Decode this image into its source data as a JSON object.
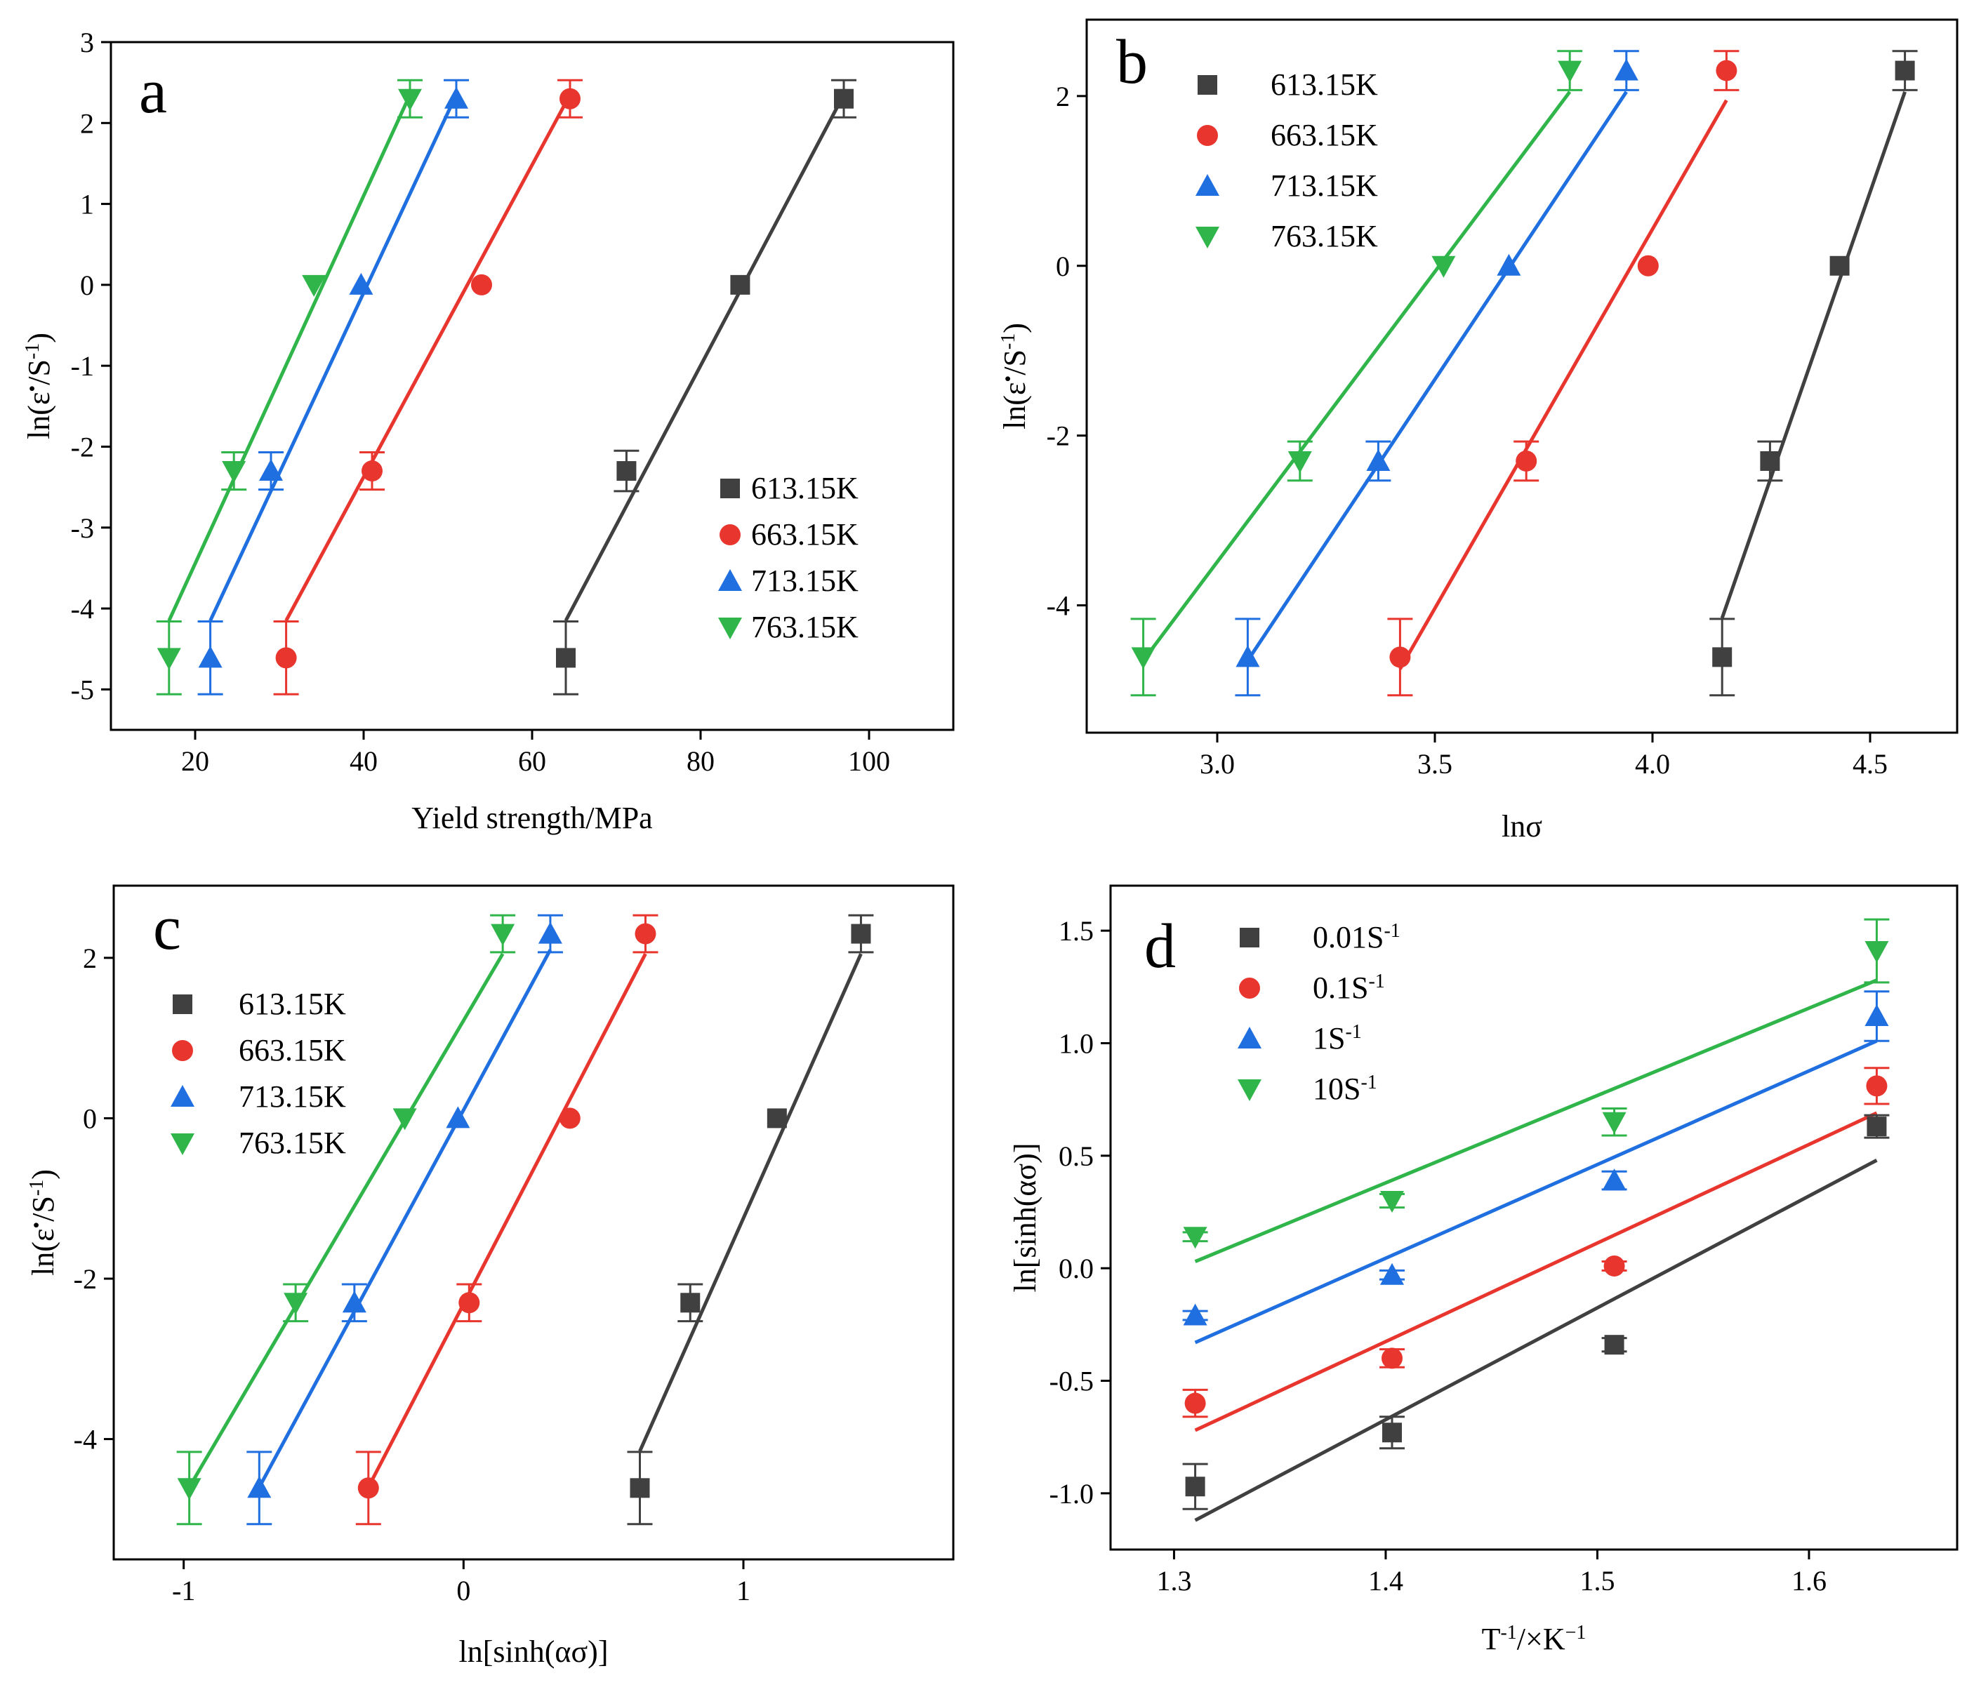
{
  "chart_data": [
    {
      "id": "a",
      "type": "scatter",
      "label": "a",
      "xlabel": "Yield strength/MPa",
      "ylabel": {
        "main": "ln(ε",
        "dot": "•",
        "slash": "/S",
        "sup": "-1",
        "close": ")"
      },
      "xlim": [
        10,
        110
      ],
      "ylim": [
        -5.5,
        3
      ],
      "xticks": [
        "20",
        "40",
        "60",
        "80",
        "100"
      ],
      "xtick_values": [
        20,
        40,
        60,
        80,
        100
      ],
      "yticks": [
        "-5",
        "-4",
        "-3",
        "-2",
        "-1",
        "0",
        "1",
        "2",
        "3"
      ],
      "ytick_values": [
        -5,
        -4,
        -3,
        -2,
        -1,
        0,
        1,
        2,
        3
      ],
      "legend_position": "lower-right",
      "series": [
        {
          "name": "613.15K",
          "color": "#404040",
          "marker": "square",
          "x": [
            64.0,
            71.2,
            84.7,
            97.0
          ],
          "y": [
            -4.61,
            -2.3,
            0.0,
            2.3
          ],
          "err": [
            0.45,
            0.25,
            0,
            0.23
          ],
          "fit": [
            [
              64.0,
              -4.15
            ],
            [
              97.0,
              2.35
            ]
          ]
        },
        {
          "name": "663.15K",
          "color": "#e8352e",
          "marker": "circle",
          "x": [
            30.8,
            41.0,
            54.0,
            64.5
          ],
          "y": [
            -4.61,
            -2.3,
            0.0,
            2.3
          ],
          "err": [
            0.45,
            0.23,
            0,
            0.23
          ],
          "fit": [
            [
              30.8,
              -4.15
            ],
            [
              64.5,
              2.35
            ]
          ]
        },
        {
          "name": "713.15K",
          "color": "#1f6fe0",
          "marker": "triangle-up",
          "x": [
            21.8,
            29.0,
            39.7,
            51.0
          ],
          "y": [
            -4.61,
            -2.3,
            0.0,
            2.3
          ],
          "err": [
            0.45,
            0.23,
            0,
            0.23
          ],
          "fit": [
            [
              21.8,
              -4.15
            ],
            [
              51.0,
              2.35
            ]
          ]
        },
        {
          "name": "763.15K",
          "color": "#2fb54a",
          "marker": "triangle-down",
          "x": [
            16.9,
            24.6,
            34.1,
            45.5
          ],
          "y": [
            -4.61,
            -2.3,
            0.0,
            2.3
          ],
          "err": [
            0.45,
            0.23,
            0,
            0.23
          ],
          "fit": [
            [
              16.9,
              -4.15
            ],
            [
              45.5,
              2.35
            ]
          ]
        }
      ]
    },
    {
      "id": "b",
      "type": "scatter",
      "label": "b",
      "xlabel": "lnσ",
      "ylabel": {
        "main": "ln(ε",
        "dot": "•",
        "slash": "/S",
        "sup": "-1",
        "close": ")"
      },
      "xlim": [
        2.7,
        4.7
      ],
      "ylim": [
        -5.5,
        2.9
      ],
      "xticks": [
        "3.0",
        "3.5",
        "4.0",
        "4.5"
      ],
      "xtick_values": [
        3.0,
        3.5,
        4.0,
        4.5
      ],
      "yticks": [
        "-4",
        "-2",
        "0",
        "2"
      ],
      "ytick_values": [
        -4,
        -2,
        0,
        2
      ],
      "legend_position": "top-left",
      "series": [
        {
          "name": "613.15K",
          "color": "#404040",
          "marker": "square",
          "x": [
            4.16,
            4.27,
            4.43,
            4.58
          ],
          "y": [
            -4.61,
            -2.3,
            0.0,
            2.3
          ],
          "err": [
            0.45,
            0.23,
            0,
            0.23
          ],
          "fit": [
            [
              4.16,
              -4.15
            ],
            [
              4.58,
              2.05
            ]
          ]
        },
        {
          "name": "663.15K",
          "color": "#e8352e",
          "marker": "circle",
          "x": [
            3.42,
            3.71,
            3.99,
            4.17
          ],
          "y": [
            -4.61,
            -2.3,
            0.0,
            2.3
          ],
          "err": [
            0.45,
            0.23,
            0,
            0.23
          ],
          "fit": [
            [
              3.42,
              -4.75
            ],
            [
              4.17,
              1.95
            ]
          ]
        },
        {
          "name": "713.15K",
          "color": "#1f6fe0",
          "marker": "triangle-up",
          "x": [
            3.07,
            3.37,
            3.67,
            3.94
          ],
          "y": [
            -4.61,
            -2.3,
            0.0,
            2.3
          ],
          "err": [
            0.45,
            0.23,
            0,
            0.23
          ],
          "fit": [
            [
              3.07,
              -4.65
            ],
            [
              3.94,
              2.05
            ]
          ]
        },
        {
          "name": "763.15K",
          "color": "#2fb54a",
          "marker": "triangle-down",
          "x": [
            2.83,
            3.19,
            3.52,
            3.81
          ],
          "y": [
            -4.61,
            -2.3,
            0.0,
            2.3
          ],
          "err": [
            0.45,
            0.23,
            0,
            0.23
          ],
          "fit": [
            [
              2.83,
              -4.65
            ],
            [
              3.81,
              2.05
            ]
          ]
        }
      ]
    },
    {
      "id": "c",
      "type": "scatter",
      "label": "c",
      "xlabel": "ln[sinh(ασ)]",
      "ylabel": {
        "main": "ln(ε",
        "dot": "•",
        "slash": "/S",
        "sup": "-1",
        "close": ")"
      },
      "xlim": [
        -1.25,
        1.75
      ],
      "ylim": [
        -5.5,
        2.9
      ],
      "xticks": [
        "-1",
        "0",
        "1"
      ],
      "xtick_values": [
        -1,
        0,
        1
      ],
      "yticks": [
        "-4",
        "-2",
        "0",
        "2"
      ],
      "ytick_values": [
        -4,
        -2,
        0,
        2
      ],
      "legend_position": "top-left",
      "series": [
        {
          "name": "613.15K",
          "color": "#404040",
          "marker": "square",
          "x": [
            0.63,
            0.81,
            1.12,
            1.42
          ],
          "y": [
            -4.61,
            -2.3,
            0.0,
            2.3
          ],
          "err": [
            0.45,
            0.23,
            0,
            0.23
          ],
          "fit": [
            [
              0.63,
              -4.15
            ],
            [
              1.42,
              2.05
            ]
          ]
        },
        {
          "name": "663.15K",
          "color": "#e8352e",
          "marker": "circle",
          "x": [
            -0.34,
            0.02,
            0.38,
            0.65
          ],
          "y": [
            -4.61,
            -2.3,
            0.0,
            2.3
          ],
          "err": [
            0.45,
            0.23,
            0,
            0.23
          ],
          "fit": [
            [
              -0.34,
              -4.6
            ],
            [
              0.65,
              2.05
            ]
          ]
        },
        {
          "name": "713.15K",
          "color": "#1f6fe0",
          "marker": "triangle-up",
          "x": [
            -0.73,
            -0.39,
            -0.02,
            0.31
          ],
          "y": [
            -4.61,
            -2.3,
            0.0,
            2.3
          ],
          "err": [
            0.45,
            0.23,
            0,
            0.23
          ],
          "fit": [
            [
              -0.73,
              -4.6
            ],
            [
              0.31,
              2.1
            ]
          ]
        },
        {
          "name": "763.15K",
          "color": "#2fb54a",
          "marker": "triangle-down",
          "x": [
            -0.98,
            -0.6,
            -0.21,
            0.14
          ],
          "y": [
            -4.61,
            -2.3,
            0.0,
            2.3
          ],
          "err": [
            0.45,
            0.23,
            0,
            0.23
          ],
          "fit": [
            [
              -0.98,
              -4.6
            ],
            [
              0.14,
              2.05
            ]
          ]
        }
      ]
    },
    {
      "id": "d",
      "type": "scatter",
      "label": "d",
      "xlabel": {
        "main": "T",
        "sup1": "-1",
        "mid": "/×K",
        "sup2": "−1"
      },
      "ylabel_text": "ln[sinh(ασ)]",
      "xlim": [
        1.27,
        1.67
      ],
      "ylim": [
        -1.25,
        1.7
      ],
      "xticks": [
        "1.3",
        "1.4",
        "1.5",
        "1.6"
      ],
      "xtick_values": [
        1.3,
        1.4,
        1.5,
        1.6
      ],
      "yticks": [
        "-1.0",
        "-0.5",
        "0.0",
        "0.5",
        "1.0",
        "1.5"
      ],
      "ytick_values": [
        -1.0,
        -0.5,
        0.0,
        0.5,
        1.0,
        1.5
      ],
      "legend_position": "top-left",
      "legend_labels": [
        {
          "main": "0.01S",
          "sup": "-1"
        },
        {
          "main": "0.1S",
          "sup": "-1"
        },
        {
          "main": "1S",
          "sup": "-1"
        },
        {
          "main": "10S",
          "sup": "-1"
        }
      ],
      "series": [
        {
          "name": "0.01S-1",
          "color": "#404040",
          "marker": "square",
          "x": [
            1.31,
            1.403,
            1.508,
            1.632
          ],
          "y": [
            -0.97,
            -0.73,
            -0.34,
            0.63
          ],
          "err": [
            0.1,
            0.07,
            0.03,
            0.05
          ],
          "fit": [
            [
              1.31,
              -1.12
            ],
            [
              1.632,
              0.48
            ]
          ]
        },
        {
          "name": "0.1S-1",
          "color": "#e8352e",
          "marker": "circle",
          "x": [
            1.31,
            1.403,
            1.508,
            1.632
          ],
          "y": [
            -0.6,
            -0.4,
            0.01,
            0.81
          ],
          "err": [
            0.06,
            0.04,
            0.02,
            0.08
          ],
          "fit": [
            [
              1.31,
              -0.72
            ],
            [
              1.632,
              0.69
            ]
          ]
        },
        {
          "name": "1S-1",
          "color": "#1f6fe0",
          "marker": "triangle-up",
          "x": [
            1.31,
            1.403,
            1.508,
            1.632
          ],
          "y": [
            -0.21,
            -0.03,
            0.39,
            1.12
          ],
          "err": [
            0.02,
            0.02,
            0.04,
            0.11
          ],
          "fit": [
            [
              1.31,
              -0.33
            ],
            [
              1.632,
              1.01
            ]
          ]
        },
        {
          "name": "10S-1",
          "color": "#2fb54a",
          "marker": "triangle-down",
          "x": [
            1.31,
            1.403,
            1.508,
            1.632
          ],
          "y": [
            0.14,
            0.3,
            0.65,
            1.41
          ],
          "err": [
            0.02,
            0.03,
            0.06,
            0.14
          ],
          "fit": [
            [
              1.31,
              0.03
            ],
            [
              1.632,
              1.28
            ]
          ]
        }
      ]
    }
  ]
}
